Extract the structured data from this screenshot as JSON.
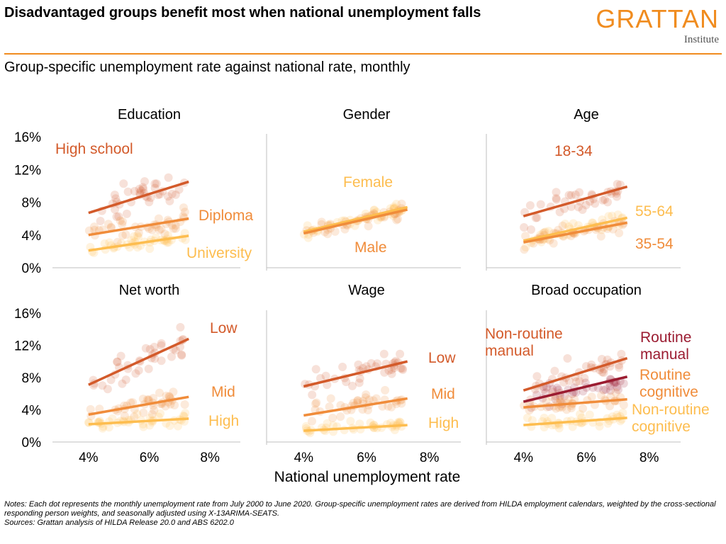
{
  "header": {
    "title": "Disadvantaged groups benefit most when national unemployment falls",
    "subtitle": "Group-specific unemployment rate against national rate, monthly",
    "brand": "GRATTAN",
    "brand_sub": "Institute",
    "brand_color": "#f08c1f"
  },
  "notes": {
    "line1": "Notes: Each dot represents the monthly unemployment rate from July 2000 to June 2020. Group-specific unemployment rates are derived from HILDA employment calendars, weighted by the cross-sectional responding person weights, and seasonally adjusted using X-13ARIMA-SEATS.",
    "line2": "Sources: Grattan analysis of HILDA Release 20.0 and ABS 6202.0"
  },
  "chart_data": {
    "type": "scatter",
    "xlabel": "National unemployment rate",
    "xlim": [
      3,
      9
    ],
    "ylim": [
      0,
      16
    ],
    "x_ticks": [
      4,
      6,
      8
    ],
    "x_tick_labels": [
      "4%",
      "6%",
      "8%"
    ],
    "y_ticks": [
      0,
      4,
      8,
      12,
      16
    ],
    "y_tick_labels": [
      "0%",
      "4%",
      "8%",
      "12%",
      "16%"
    ],
    "panels": [
      {
        "title": "Education",
        "series": [
          {
            "name": "High school",
            "color": "#d35a2a",
            "trend": [
              [
                4.0,
                6.7
              ],
              [
                7.3,
                10.5
              ]
            ],
            "spread": 1.4
          },
          {
            "name": "Diploma",
            "color": "#f08c3a",
            "trend": [
              [
                4.0,
                4.0
              ],
              [
                7.3,
                6.0
              ]
            ],
            "spread": 0.9
          },
          {
            "name": "University",
            "color": "#fdbd4f",
            "trend": [
              [
                4.0,
                2.1
              ],
              [
                7.3,
                3.9
              ]
            ],
            "spread": 0.6
          }
        ]
      },
      {
        "title": "Gender",
        "series": [
          {
            "name": "Female",
            "color": "#fdbd4f",
            "trend": [
              [
                4.0,
                4.4
              ],
              [
                7.3,
                7.4
              ]
            ],
            "spread": 0.6
          },
          {
            "name": "Male",
            "color": "#f08c3a",
            "trend": [
              [
                4.0,
                4.2
              ],
              [
                7.3,
                7.1
              ]
            ],
            "spread": 0.6
          }
        ]
      },
      {
        "title": "Age",
        "series": [
          {
            "name": "18-34",
            "color": "#d35a2a",
            "trend": [
              [
                4.0,
                6.3
              ],
              [
                7.3,
                9.9
              ]
            ],
            "spread": 1.2
          },
          {
            "name": "55-64",
            "color": "#fdbd4f",
            "trend": [
              [
                4.0,
                3.3
              ],
              [
                7.3,
                6.1
              ]
            ],
            "spread": 0.8
          },
          {
            "name": "35-54",
            "color": "#f08c3a",
            "trend": [
              [
                4.0,
                3.1
              ],
              [
                7.3,
                5.5
              ]
            ],
            "spread": 0.6
          }
        ]
      },
      {
        "title": "Net worth",
        "series": [
          {
            "name": "Low",
            "color": "#d35a2a",
            "trend": [
              [
                4.0,
                7.1
              ],
              [
                7.3,
                12.8
              ]
            ],
            "spread": 1.5
          },
          {
            "name": "Mid",
            "color": "#f08c3a",
            "trend": [
              [
                4.0,
                3.4
              ],
              [
                7.3,
                5.6
              ]
            ],
            "spread": 0.9
          },
          {
            "name": "High",
            "color": "#fdbd4f",
            "trend": [
              [
                4.0,
                2.2
              ],
              [
                7.3,
                2.9
              ]
            ],
            "spread": 0.6
          }
        ]
      },
      {
        "title": "Wage",
        "series": [
          {
            "name": "Low",
            "color": "#d35a2a",
            "trend": [
              [
                4.0,
                6.9
              ],
              [
                7.3,
                10.0
              ]
            ],
            "spread": 1.2
          },
          {
            "name": "Mid",
            "color": "#f08c3a",
            "trend": [
              [
                4.0,
                3.3
              ],
              [
                7.3,
                5.4
              ]
            ],
            "spread": 0.9
          },
          {
            "name": "High",
            "color": "#fdbd4f",
            "trend": [
              [
                4.0,
                1.4
              ],
              [
                7.3,
                2.1
              ]
            ],
            "spread": 0.5
          }
        ]
      },
      {
        "title": "Broad occupation",
        "series": [
          {
            "name": "Non-routine manual",
            "color": "#d35a2a",
            "trend": [
              [
                4.0,
                6.4
              ],
              [
                7.3,
                10.4
              ]
            ],
            "spread": 1.3
          },
          {
            "name": "Routine manual",
            "color": "#9b1c31",
            "trend": [
              [
                4.0,
                5.0
              ],
              [
                7.3,
                8.1
              ]
            ],
            "spread": 1.1
          },
          {
            "name": "Routine cognitive",
            "color": "#f08c3a",
            "trend": [
              [
                4.0,
                4.3
              ],
              [
                7.3,
                5.3
              ]
            ],
            "spread": 0.7
          },
          {
            "name": "Non-routine cognitive",
            "color": "#fdbd4f",
            "trend": [
              [
                4.0,
                2.1
              ],
              [
                7.3,
                3.0
              ]
            ],
            "spread": 0.5
          }
        ]
      }
    ]
  }
}
